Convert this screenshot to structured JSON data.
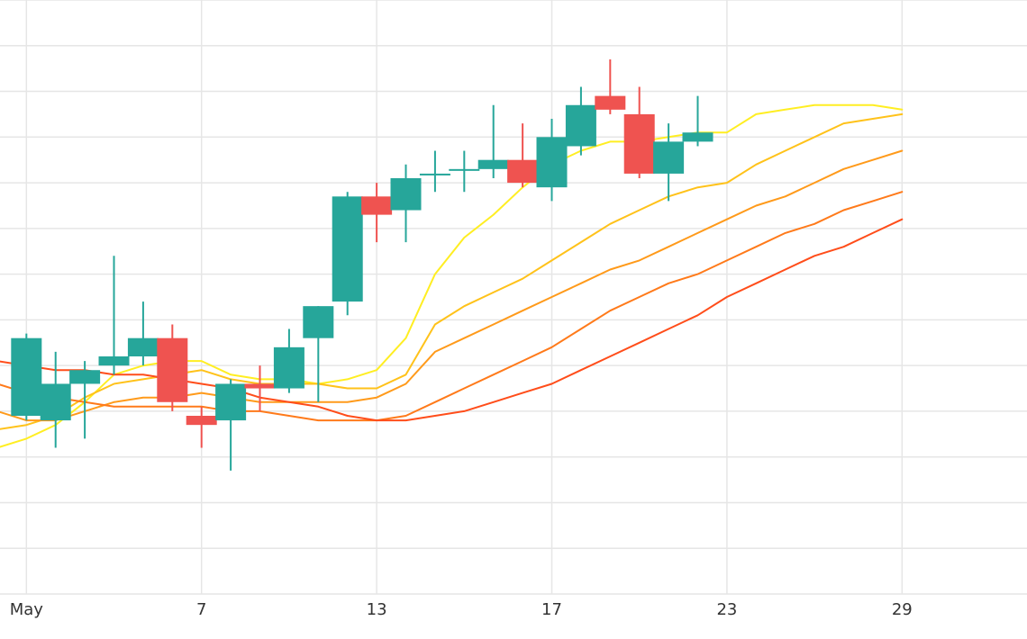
{
  "chart_data": {
    "type": "candlestick",
    "title": "",
    "xlabel": "",
    "ylabel": "",
    "x_tick_labels": [
      "May",
      "7",
      "13",
      "17",
      "23",
      "29"
    ],
    "x_tick_indices": [
      2,
      8,
      14,
      20,
      26,
      32
    ],
    "ylim": [
      0,
      13
    ],
    "grid": true,
    "legend": "none",
    "colors": {
      "up": "#26a69a",
      "down": "#ef5350"
    },
    "candles": [
      {
        "open": 3.9,
        "high": 5.7,
        "low": 3.8,
        "close": 5.6
      },
      {
        "open": 3.8,
        "high": 5.3,
        "low": 3.2,
        "close": 4.6
      },
      {
        "open": 4.6,
        "high": 5.1,
        "low": 3.4,
        "close": 4.9
      },
      {
        "open": 5.0,
        "high": 7.4,
        "low": 4.8,
        "close": 5.2
      },
      {
        "open": 5.2,
        "high": 6.4,
        "low": 5.0,
        "close": 5.6
      },
      {
        "open": 5.6,
        "high": 5.9,
        "low": 4.0,
        "close": 4.2
      },
      {
        "open": 3.9,
        "high": 4.1,
        "low": 3.2,
        "close": 3.7
      },
      {
        "open": 3.8,
        "high": 4.7,
        "low": 2.7,
        "close": 4.6
      },
      {
        "open": 4.6,
        "high": 5.0,
        "low": 4.0,
        "close": 4.5
      },
      {
        "open": 4.5,
        "high": 5.8,
        "low": 4.4,
        "close": 5.4
      },
      {
        "open": 5.6,
        "high": 6.3,
        "low": 4.2,
        "close": 6.3
      },
      {
        "open": 6.4,
        "high": 8.8,
        "low": 6.1,
        "close": 8.7
      },
      {
        "open": 8.7,
        "high": 9.0,
        "low": 7.7,
        "close": 8.3
      },
      {
        "open": 8.4,
        "high": 9.4,
        "low": 7.7,
        "close": 9.1
      },
      {
        "open": 9.2,
        "high": 9.7,
        "low": 8.8,
        "close": 9.2
      },
      {
        "open": 9.3,
        "high": 9.7,
        "low": 8.8,
        "close": 9.3
      },
      {
        "open": 9.3,
        "high": 10.7,
        "low": 9.1,
        "close": 9.5
      },
      {
        "open": 9.5,
        "high": 10.3,
        "low": 8.9,
        "close": 9.0
      },
      {
        "open": 8.9,
        "high": 10.4,
        "low": 8.6,
        "close": 10.0
      },
      {
        "open": 9.8,
        "high": 11.1,
        "low": 9.6,
        "close": 10.7
      },
      {
        "open": 10.9,
        "high": 11.7,
        "low": 10.5,
        "close": 10.6
      },
      {
        "open": 10.5,
        "high": 11.1,
        "low": 9.1,
        "close": 9.2
      },
      {
        "open": 9.2,
        "high": 10.3,
        "low": 8.6,
        "close": 9.9
      },
      {
        "open": 9.9,
        "high": 10.9,
        "low": 9.8,
        "close": 10.1
      }
    ],
    "candle_positions": [
      2,
      3,
      4,
      5,
      6,
      7,
      8,
      9,
      10,
      11,
      12,
      13,
      14,
      15,
      16,
      17,
      18,
      19,
      20,
      21,
      22,
      23,
      24,
      25
    ],
    "series": [
      {
        "color": "#ffee22",
        "values": [
          [
            1,
            3.2
          ],
          [
            2,
            3.4
          ],
          [
            3,
            3.7
          ],
          [
            4,
            4.2
          ],
          [
            5,
            4.8
          ],
          [
            6,
            5.0
          ],
          [
            7,
            5.1
          ],
          [
            8,
            5.1
          ],
          [
            9,
            4.8
          ],
          [
            10,
            4.7
          ],
          [
            11,
            4.7
          ],
          [
            12,
            4.6
          ],
          [
            13,
            4.7
          ],
          [
            14,
            4.9
          ],
          [
            15,
            5.6
          ],
          [
            16,
            7.0
          ],
          [
            17,
            7.8
          ],
          [
            18,
            8.3
          ],
          [
            19,
            8.9
          ],
          [
            20,
            9.4
          ],
          [
            21,
            9.7
          ],
          [
            22,
            9.9
          ],
          [
            23,
            9.9
          ],
          [
            24,
            10.0
          ],
          [
            25,
            10.1
          ],
          [
            26,
            10.1
          ],
          [
            27,
            10.5
          ],
          [
            28,
            10.6
          ],
          [
            29,
            10.7
          ],
          [
            30,
            10.7
          ],
          [
            31,
            10.7
          ],
          [
            32,
            10.6
          ]
        ]
      },
      {
        "color": "#ffc21a",
        "values": [
          [
            1,
            3.6
          ],
          [
            2,
            3.7
          ],
          [
            3,
            3.9
          ],
          [
            4,
            4.3
          ],
          [
            5,
            4.6
          ],
          [
            6,
            4.7
          ],
          [
            7,
            4.8
          ],
          [
            8,
            4.9
          ],
          [
            9,
            4.7
          ],
          [
            10,
            4.6
          ],
          [
            11,
            4.6
          ],
          [
            12,
            4.6
          ],
          [
            13,
            4.5
          ],
          [
            14,
            4.5
          ],
          [
            15,
            4.8
          ],
          [
            16,
            5.9
          ],
          [
            17,
            6.3
          ],
          [
            18,
            6.6
          ],
          [
            19,
            6.9
          ],
          [
            20,
            7.3
          ],
          [
            21,
            7.7
          ],
          [
            22,
            8.1
          ],
          [
            23,
            8.4
          ],
          [
            24,
            8.7
          ],
          [
            25,
            8.9
          ],
          [
            26,
            9.0
          ],
          [
            27,
            9.4
          ],
          [
            28,
            9.7
          ],
          [
            29,
            10.0
          ],
          [
            30,
            10.3
          ],
          [
            31,
            10.4
          ],
          [
            32,
            10.5
          ]
        ]
      },
      {
        "color": "#ff9a1a",
        "values": [
          [
            1,
            4.0
          ],
          [
            2,
            3.8
          ],
          [
            3,
            3.8
          ],
          [
            4,
            4.0
          ],
          [
            5,
            4.2
          ],
          [
            6,
            4.3
          ],
          [
            7,
            4.3
          ],
          [
            8,
            4.4
          ],
          [
            9,
            4.3
          ],
          [
            10,
            4.2
          ],
          [
            11,
            4.2
          ],
          [
            12,
            4.2
          ],
          [
            13,
            4.2
          ],
          [
            14,
            4.3
          ],
          [
            15,
            4.6
          ],
          [
            16,
            5.3
          ],
          [
            17,
            5.6
          ],
          [
            18,
            5.9
          ],
          [
            19,
            6.2
          ],
          [
            20,
            6.5
          ],
          [
            21,
            6.8
          ],
          [
            22,
            7.1
          ],
          [
            23,
            7.3
          ],
          [
            24,
            7.6
          ],
          [
            25,
            7.9
          ],
          [
            26,
            8.2
          ],
          [
            27,
            8.5
          ],
          [
            28,
            8.7
          ],
          [
            29,
            9.0
          ],
          [
            30,
            9.3
          ],
          [
            31,
            9.5
          ],
          [
            32,
            9.7
          ]
        ]
      },
      {
        "color": "#ff7a1a",
        "values": [
          [
            1,
            4.6
          ],
          [
            2,
            4.4
          ],
          [
            3,
            4.3
          ],
          [
            4,
            4.2
          ],
          [
            5,
            4.1
          ],
          [
            6,
            4.1
          ],
          [
            7,
            4.1
          ],
          [
            8,
            4.1
          ],
          [
            9,
            4.0
          ],
          [
            10,
            4.0
          ],
          [
            11,
            3.9
          ],
          [
            12,
            3.8
          ],
          [
            13,
            3.8
          ],
          [
            14,
            3.8
          ],
          [
            15,
            3.9
          ],
          [
            16,
            4.2
          ],
          [
            17,
            4.5
          ],
          [
            18,
            4.8
          ],
          [
            19,
            5.1
          ],
          [
            20,
            5.4
          ],
          [
            21,
            5.8
          ],
          [
            22,
            6.2
          ],
          [
            23,
            6.5
          ],
          [
            24,
            6.8
          ],
          [
            25,
            7.0
          ],
          [
            26,
            7.3
          ],
          [
            27,
            7.6
          ],
          [
            28,
            7.9
          ],
          [
            29,
            8.1
          ],
          [
            30,
            8.4
          ],
          [
            31,
            8.6
          ],
          [
            32,
            8.8
          ]
        ]
      },
      {
        "color": "#ff4d1a",
        "values": [
          [
            1,
            5.1
          ],
          [
            2,
            5.0
          ],
          [
            3,
            4.9
          ],
          [
            4,
            4.9
          ],
          [
            5,
            4.8
          ],
          [
            6,
            4.8
          ],
          [
            7,
            4.7
          ],
          [
            8,
            4.6
          ],
          [
            9,
            4.5
          ],
          [
            10,
            4.3
          ],
          [
            11,
            4.2
          ],
          [
            12,
            4.1
          ],
          [
            13,
            3.9
          ],
          [
            14,
            3.8
          ],
          [
            15,
            3.8
          ],
          [
            16,
            3.9
          ],
          [
            17,
            4.0
          ],
          [
            18,
            4.2
          ],
          [
            19,
            4.4
          ],
          [
            20,
            4.6
          ],
          [
            21,
            4.9
          ],
          [
            22,
            5.2
          ],
          [
            23,
            5.5
          ],
          [
            24,
            5.8
          ],
          [
            25,
            6.1
          ],
          [
            26,
            6.5
          ],
          [
            27,
            6.8
          ],
          [
            28,
            7.1
          ],
          [
            29,
            7.4
          ],
          [
            30,
            7.6
          ],
          [
            31,
            7.9
          ],
          [
            32,
            8.2
          ]
        ]
      }
    ]
  }
}
